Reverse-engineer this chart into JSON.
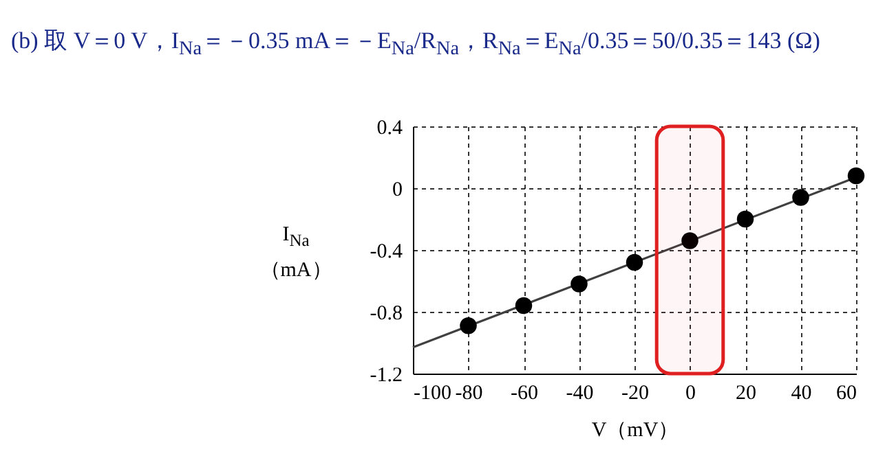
{
  "chart_data": {
    "type": "scatter",
    "title": "(b) 取 V＝0 V，I$_{Na}$＝－0.35 mA＝－E$_{Na}$/R$_{Na}$，R$_{Na}$＝E$_{Na}$/0.35＝50/0.35＝143 (Ω)",
    "xlabel": "V（mV）",
    "ylabel": "I$_{Na}$（mA）",
    "series": [
      {
        "x": [
          -80,
          -60,
          -40,
          -20,
          0,
          20,
          40,
          60
        ],
        "values": [
          -0.89,
          -0.76,
          -0.62,
          -0.48,
          -0.34,
          -0.2,
          -0.06,
          0.08
        ],
        "color": "#000000"
      },
      {
        "type": "line",
        "marker": "none",
        "x": [
          -100,
          60
        ],
        "values": [
          -1.03,
          0.07
        ],
        "color": "#404040"
      }
    ],
    "xlim": [
      -100,
      60
    ],
    "xticks": [
      -100,
      -80,
      -60,
      -40,
      -20,
      0,
      20,
      40,
      60
    ],
    "ylim": [
      -1.2,
      0.4
    ],
    "yticks": [
      -1.2,
      -0.8,
      -0.4,
      0,
      0.4
    ],
    "grid": true,
    "marker": "circle",
    "bands": [
      {
        "axis": "x",
        "from": -12,
        "to": 12,
        "color": "#e02020"
      }
    ]
  }
}
